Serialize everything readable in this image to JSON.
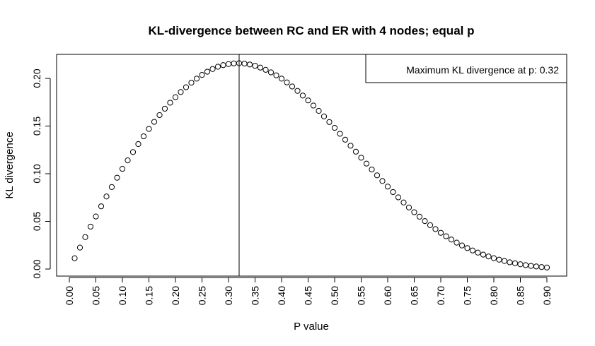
{
  "chart_data": {
    "type": "scatter",
    "title": "KL-divergence between RC and ER with 4 nodes; equal p",
    "xlabel": "P value",
    "ylabel": "KL divergence",
    "xlim": [
      0.0,
      0.9
    ],
    "ylim": [
      0.0,
      0.2
    ],
    "x_ticks": [
      "0.00",
      "0.05",
      "0.10",
      "0.15",
      "0.20",
      "0.25",
      "0.30",
      "0.35",
      "0.40",
      "0.45",
      "0.50",
      "0.55",
      "0.60",
      "0.65",
      "0.70",
      "0.75",
      "0.80",
      "0.85",
      "0.90"
    ],
    "y_ticks": [
      "0.00",
      "0.05",
      "0.10",
      "0.15",
      "0.20"
    ],
    "vline_x": 0.32,
    "legend": {
      "text": "Maximum KL divergence at p: 0.32",
      "placement": "top-right"
    },
    "x": [
      0.01,
      0.02,
      0.03,
      0.04,
      0.05,
      0.06,
      0.07,
      0.08,
      0.09,
      0.1,
      0.11,
      0.12,
      0.13,
      0.14,
      0.15,
      0.16,
      0.17,
      0.18,
      0.19,
      0.2,
      0.21,
      0.22,
      0.23,
      0.24,
      0.25,
      0.26,
      0.27,
      0.28,
      0.29,
      0.3,
      0.31,
      0.32,
      0.33,
      0.34,
      0.35,
      0.36,
      0.37,
      0.38,
      0.39,
      0.4,
      0.41,
      0.42,
      0.43,
      0.44,
      0.45,
      0.46,
      0.47,
      0.48,
      0.49,
      0.5,
      0.51,
      0.52,
      0.53,
      0.54,
      0.55,
      0.56,
      0.57,
      0.58,
      0.59,
      0.6,
      0.61,
      0.62,
      0.63,
      0.64,
      0.65,
      0.66,
      0.67,
      0.68,
      0.69,
      0.7,
      0.71,
      0.72,
      0.73,
      0.74,
      0.75,
      0.76,
      0.77,
      0.78,
      0.79,
      0.8,
      0.81,
      0.82,
      0.83,
      0.84,
      0.85,
      0.86,
      0.87,
      0.88,
      0.89,
      0.9
    ],
    "y": [
      0.0113,
      0.0225,
      0.0335,
      0.0445,
      0.0551,
      0.0658,
      0.0761,
      0.086,
      0.0958,
      0.1051,
      0.114,
      0.1227,
      0.1311,
      0.1392,
      0.147,
      0.1544,
      0.1615,
      0.1682,
      0.1745,
      0.1803,
      0.1857,
      0.1907,
      0.1955,
      0.1997,
      0.2036,
      0.207,
      0.2098,
      0.2122,
      0.2139,
      0.215,
      0.2157,
      0.2159,
      0.2155,
      0.2146,
      0.2132,
      0.2113,
      0.209,
      0.2063,
      0.2032,
      0.1997,
      0.1958,
      0.1915,
      0.1869,
      0.182,
      0.1769,
      0.1715,
      0.1659,
      0.1601,
      0.1542,
      0.1481,
      0.1419,
      0.1357,
      0.1294,
      0.1231,
      0.1168,
      0.1106,
      0.1044,
      0.0983,
      0.0923,
      0.0865,
      0.0808,
      0.0752,
      0.0698,
      0.0646,
      0.0596,
      0.0549,
      0.0503,
      0.046,
      0.0419,
      0.038,
      0.0344,
      0.0309,
      0.0277,
      0.0247,
      0.022,
      0.0195,
      0.0172,
      0.0151,
      0.0132,
      0.0114,
      0.0098,
      0.0084,
      0.0071,
      0.006,
      0.005,
      0.0041,
      0.0033,
      0.0027,
      0.0021,
      0.0016
    ]
  }
}
